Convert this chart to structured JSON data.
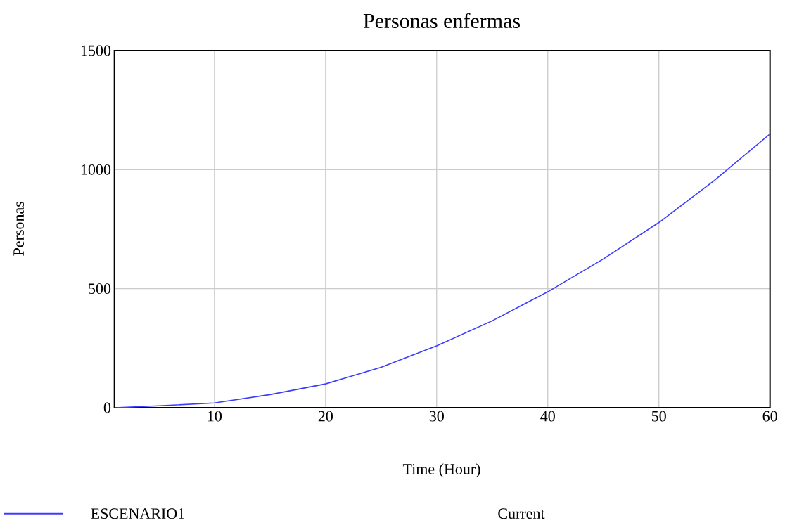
{
  "chart_data": {
    "type": "line",
    "title": "Personas enfermas",
    "xlabel": "Time (Hour)",
    "ylabel": "Personas",
    "x": [
      1,
      5,
      10,
      15,
      20,
      25,
      30,
      35,
      40,
      45,
      50,
      55,
      60
    ],
    "series": [
      {
        "name": "ESCENARIO1",
        "color": "#3c3cff",
        "values": [
          0,
          8,
          20,
          55,
          100,
          170,
          260,
          365,
          487,
          625,
          778,
          955,
          1150
        ]
      }
    ],
    "xlim": [
      1,
      60
    ],
    "ylim": [
      0,
      1500
    ],
    "xticks": [
      10,
      20,
      30,
      40,
      50,
      60
    ],
    "yticks": [
      0,
      500,
      1000,
      1500
    ],
    "grid": true,
    "legend": "bottom",
    "marker": "none",
    "line_style": "solid",
    "annotations": [
      "Current"
    ]
  }
}
